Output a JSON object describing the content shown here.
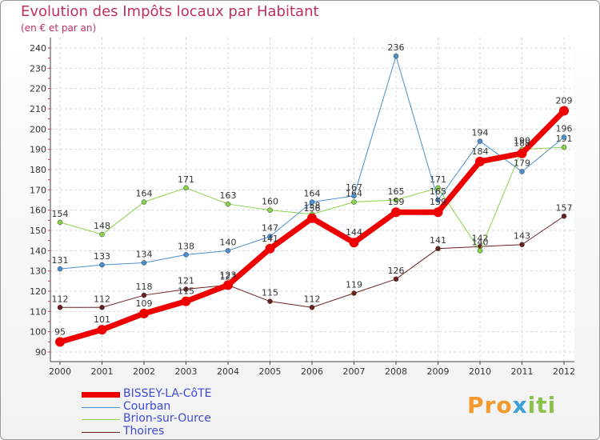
{
  "title": "Evolution des Impôts locaux par Habitant",
  "subtitle": "(en € et par an)",
  "chart_data": {
    "type": "line",
    "title": "Evolution des Impôts locaux par Habitant",
    "subtitle": "(en € et par an)",
    "xlabel": "",
    "ylabel": "",
    "x": [
      "2000",
      "2001",
      "2002",
      "2003",
      "2004",
      "2005",
      "2006",
      "2007",
      "2008",
      "2009",
      "2010",
      "2011",
      "2012"
    ],
    "ylim": [
      90,
      240
    ],
    "yticks": [
      90,
      100,
      110,
      120,
      130,
      140,
      150,
      160,
      170,
      180,
      190,
      200,
      210,
      220,
      230,
      240
    ],
    "grid": true,
    "legend_position": "bottom-left",
    "series": [
      {
        "name": "Thoires",
        "color": "#6b2020",
        "width": 1,
        "values": [
          112,
          112,
          118,
          121,
          123,
          115,
          112,
          119,
          126,
          141,
          142,
          143,
          157
        ],
        "labels": [
          "112",
          "112",
          "118",
          "121",
          "123",
          "115",
          "112",
          "119",
          "126",
          "141",
          "142",
          "143",
          "157"
        ]
      },
      {
        "name": "Brion-sur-Ource",
        "color": "#88d449",
        "width": 1,
        "values": [
          154,
          148,
          164,
          171,
          163,
          160,
          158,
          164,
          165,
          171,
          140,
          190,
          191
        ],
        "labels": [
          "154",
          "148",
          "164",
          "171",
          "163",
          "160",
          "158",
          "164",
          "165",
          "171",
          "140",
          "190",
          "191"
        ]
      },
      {
        "name": "Courban",
        "color": "#4a8fcf",
        "width": 1,
        "values": [
          131,
          133,
          134,
          138,
          140,
          147,
          164,
          167,
          236,
          165,
          194,
          179,
          196
        ],
        "labels": [
          "131",
          "133",
          "134",
          "138",
          "140",
          "147",
          "164",
          "167",
          "236",
          "165",
          "194",
          "179",
          "196"
        ]
      },
      {
        "name": "BISSEY-LA-CôTE",
        "color": "#ee0000",
        "width": 7,
        "values": [
          95,
          101,
          109,
          115,
          123,
          141,
          156,
          144,
          159,
          159,
          184,
          188,
          209
        ],
        "labels": [
          "95",
          "101",
          "109",
          "115",
          "123",
          "141",
          "156",
          "144",
          "159",
          "159",
          "184",
          "188",
          "209"
        ]
      }
    ]
  },
  "legend": [
    {
      "label": "BISSEY-LA-CôTE",
      "color": "#ee0000"
    },
    {
      "label": "Courban",
      "color": "#4a8fcf"
    },
    {
      "label": "Brion-sur-Ource",
      "color": "#88d449"
    },
    {
      "label": "Thoires",
      "color": "#6b2020"
    }
  ],
  "logo": {
    "part1": "Pro",
    "part2": "x",
    "part3": "iti"
  }
}
